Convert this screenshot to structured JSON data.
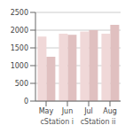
{
  "chart_data": {
    "type": "bar",
    "xlabel": "cStation i   cStation ii",
    "categories": [
      "May",
      "Jun",
      "Jul",
      "Aug"
    ],
    "series": [
      {
        "color": "#f0d8d8",
        "values": [
          1820,
          1900,
          1960,
          1900
        ]
      },
      {
        "color": "#e0c0c0",
        "values": [
          1250,
          1870,
          2000,
          2150
        ]
      }
    ],
    "ylim": [
      0,
      2500
    ],
    "yticks": [
      0,
      500,
      1000,
      1500,
      2000,
      2500
    ],
    "grid": true
  }
}
